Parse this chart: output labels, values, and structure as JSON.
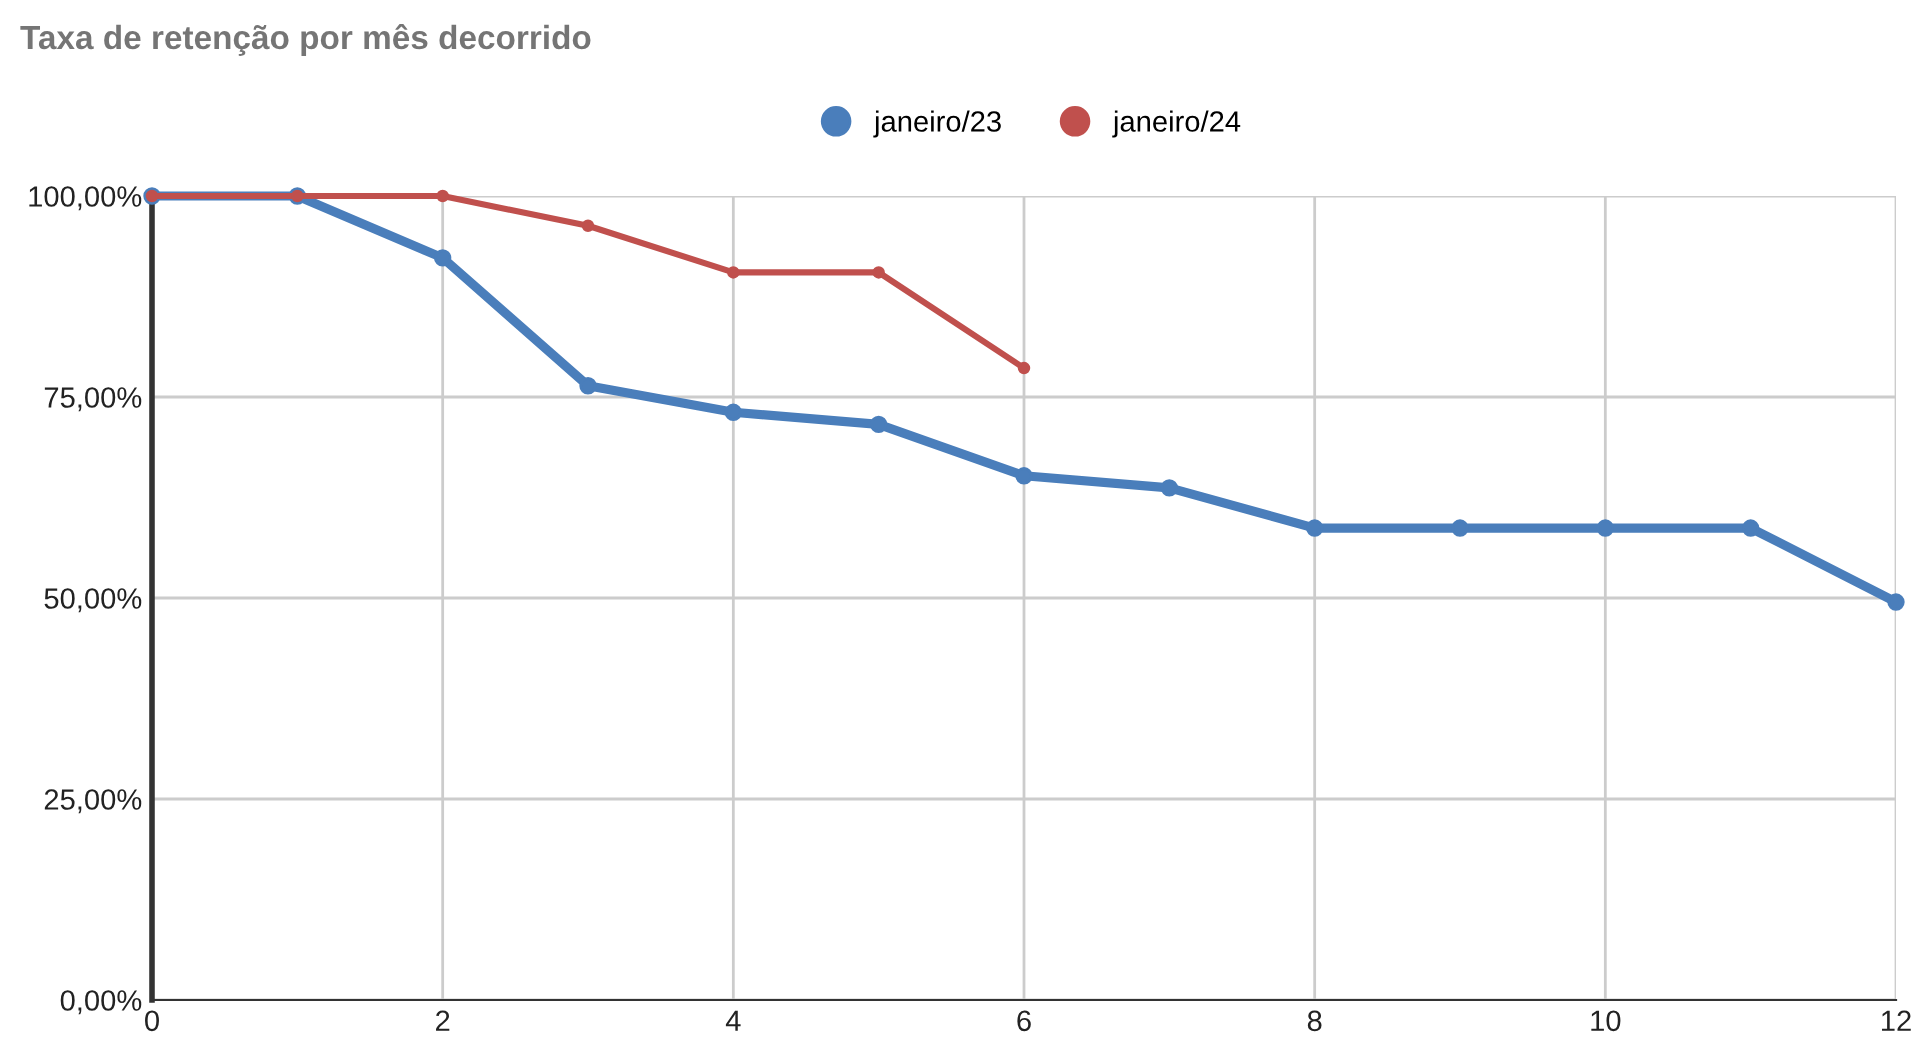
{
  "chart_data": {
    "type": "line",
    "title": "Taxa de retenção por mês decorrido",
    "x": [
      0,
      1,
      2,
      3,
      4,
      5,
      6,
      7,
      8,
      9,
      10,
      11,
      12
    ],
    "series": [
      {
        "name": "janeiro/23",
        "color": "#4a7ebb",
        "values": [
          100,
          100,
          92.3,
          76.4,
          73.1,
          71.6,
          65.2,
          63.7,
          58.7,
          58.7,
          58.7,
          58.7,
          49.5
        ]
      },
      {
        "name": "janeiro/24",
        "color": "#c0504d",
        "values": [
          100,
          100,
          100,
          96.3,
          90.5,
          90.5,
          78.6,
          null,
          null,
          null,
          null,
          null,
          null
        ]
      }
    ],
    "xlim": [
      0,
      12
    ],
    "xticks": [
      0,
      2,
      4,
      6,
      8,
      10,
      12
    ],
    "ylim": [
      0,
      100
    ],
    "yticks": [
      {
        "value": 0,
        "label": "0,00%"
      },
      {
        "value": 25,
        "label": "25,00%"
      },
      {
        "value": 50,
        "label": "50,00%"
      },
      {
        "value": 75,
        "label": "75,00%"
      },
      {
        "value": 100,
        "label": "100,00%"
      }
    ],
    "grid": true,
    "legend": "top",
    "marker": "circle",
    "line_style": "solid"
  }
}
